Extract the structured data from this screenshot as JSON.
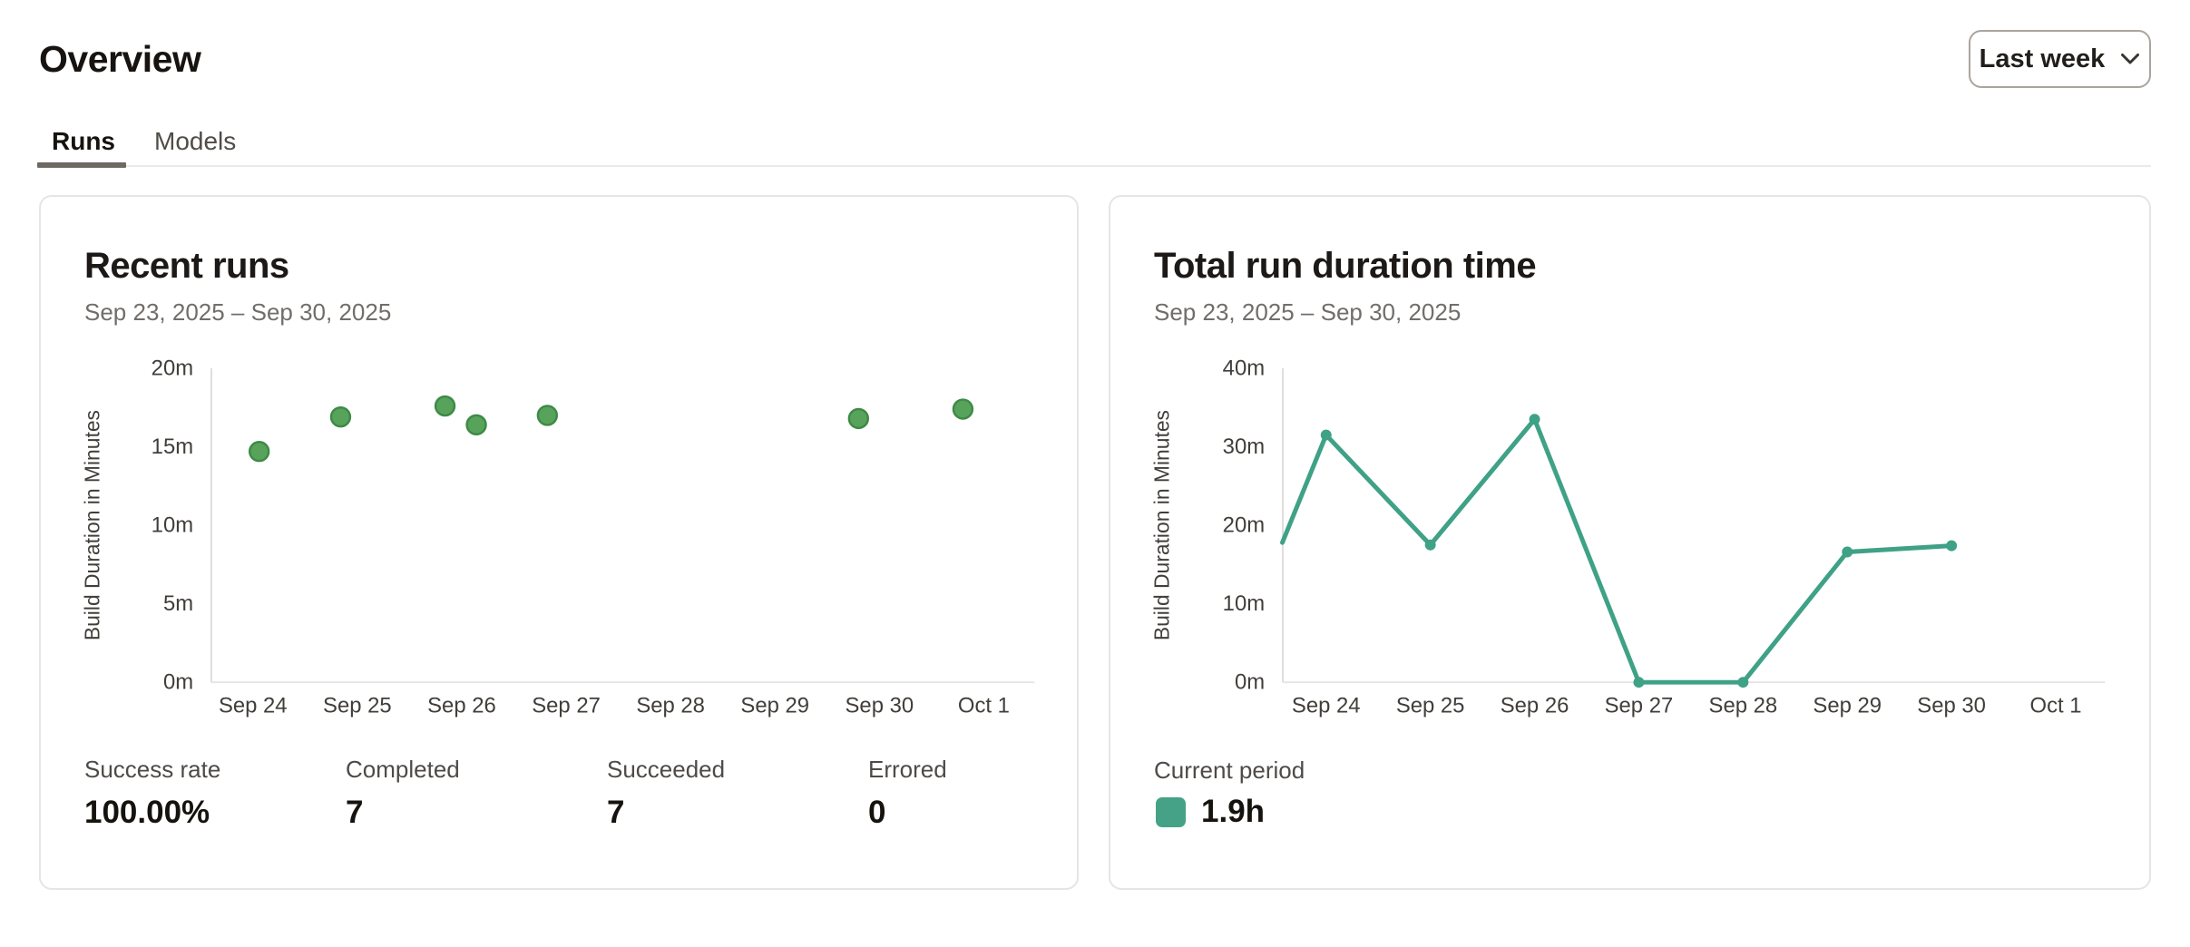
{
  "page": {
    "title": "Overview"
  },
  "period_selector": {
    "label": "Last week",
    "icon": "chevron-down-icon"
  },
  "tabs": [
    {
      "label": "Runs",
      "active": true
    },
    {
      "label": "Models",
      "active": false
    }
  ],
  "cards": {
    "recent_runs": {
      "title": "Recent runs",
      "date_range": "Sep 23, 2025 – Sep 30, 2025",
      "stats": [
        {
          "label": "Success rate",
          "value": "100.00%"
        },
        {
          "label": "Completed",
          "value": "7"
        },
        {
          "label": "Succeeded",
          "value": "7"
        },
        {
          "label": "Errored",
          "value": "0"
        }
      ]
    },
    "total_run_duration": {
      "title": "Total run duration time",
      "date_range": "Sep 23, 2025 – Sep 30, 2025",
      "legend": {
        "label": "Current period",
        "value": "1.9h",
        "swatch_color": "#46a287"
      }
    }
  },
  "colors": {
    "scatter_point": "#58a35c",
    "scatter_point_edge": "#3e8a46",
    "line": "#3fa186",
    "legend_swatch": "#46a287",
    "active_tab_underline": "#6e6862"
  },
  "chart_data": [
    {
      "type": "scatter",
      "title": "Recent runs",
      "xlabel": "",
      "ylabel": "Build Duration in Minutes",
      "ylim": [
        0,
        20
      ],
      "y_tick_labels": [
        "0m",
        "5m",
        "10m",
        "15m",
        "20m"
      ],
      "x_tick_labels": [
        "Sep 24",
        "Sep 25",
        "Sep 26",
        "Sep 27",
        "Sep 28",
        "Sep 29",
        "Sep 30",
        "Oct 1"
      ],
      "x_units": "days, 1 = Sep 24 tick",
      "xlim": [
        0.52,
        8.5
      ],
      "grid": false,
      "legend_position": "none",
      "points": [
        {
          "x": 1.06,
          "y": 14.7
        },
        {
          "x": 1.84,
          "y": 16.9
        },
        {
          "x": 2.84,
          "y": 17.6
        },
        {
          "x": 3.14,
          "y": 16.4
        },
        {
          "x": 3.82,
          "y": 17.0
        },
        {
          "x": 6.8,
          "y": 16.8
        },
        {
          "x": 7.8,
          "y": 17.4
        }
      ],
      "point_color": "#58a35c",
      "point_edge_color": "#3e8a46"
    },
    {
      "type": "line",
      "title": "Total run duration time",
      "xlabel": "",
      "ylabel": "Build Duration in Minutes",
      "ylim": [
        0,
        40
      ],
      "y_tick_labels": [
        "0m",
        "10m",
        "20m",
        "30m",
        "40m"
      ],
      "x_tick_labels": [
        "Sep 24",
        "Sep 25",
        "Sep 26",
        "Sep 27",
        "Sep 28",
        "Sep 29",
        "Sep 30",
        "Oct 1"
      ],
      "x_units": "days, 1 = Sep 24 tick; 0.58 = clipped series start at y-axis",
      "xlim": [
        0.58,
        8.47
      ],
      "grid": false,
      "legend_position": "bottom-left",
      "points": [
        {
          "x": 0.58,
          "y": 17.8,
          "marker": false
        },
        {
          "x": 1,
          "y": 31.5,
          "marker": true
        },
        {
          "x": 2,
          "y": 17.5,
          "marker": true
        },
        {
          "x": 3,
          "y": 33.5,
          "marker": true
        },
        {
          "x": 4,
          "y": 0,
          "marker": true
        },
        {
          "x": 5,
          "y": 0,
          "marker": true
        },
        {
          "x": 6,
          "y": 16.6,
          "marker": true
        },
        {
          "x": 7,
          "y": 17.4,
          "marker": true
        }
      ],
      "line_color": "#3fa186",
      "total": "1.9h"
    }
  ]
}
